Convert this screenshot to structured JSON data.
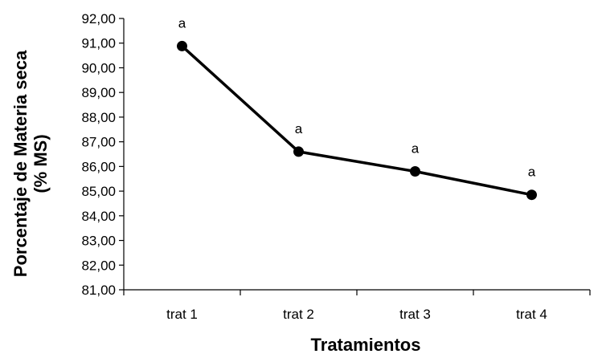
{
  "chart_data": {
    "type": "line",
    "categories": [
      "trat 1",
      "trat 2",
      "trat 3",
      "trat 4"
    ],
    "series": [
      {
        "values": [
          90.88,
          86.6,
          85.8,
          84.85
        ],
        "data_labels": [
          "a",
          "a",
          "a",
          "a"
        ]
      }
    ],
    "xlabel": "Tratamientos",
    "ylabel_lines": [
      "Porcentaje de Materia seca",
      "(% MS)"
    ],
    "ylim": [
      81,
      92
    ],
    "ytick_step": 1,
    "ytick_labels": [
      "81,00",
      "82,00",
      "83,00",
      "84,00",
      "85,00",
      "86,00",
      "87,00",
      "88,00",
      "89,00",
      "90,00",
      "91,00",
      "92,00"
    ],
    "grid": false,
    "legend": "none",
    "line_color": "#000000",
    "marker_color": "#000000"
  }
}
